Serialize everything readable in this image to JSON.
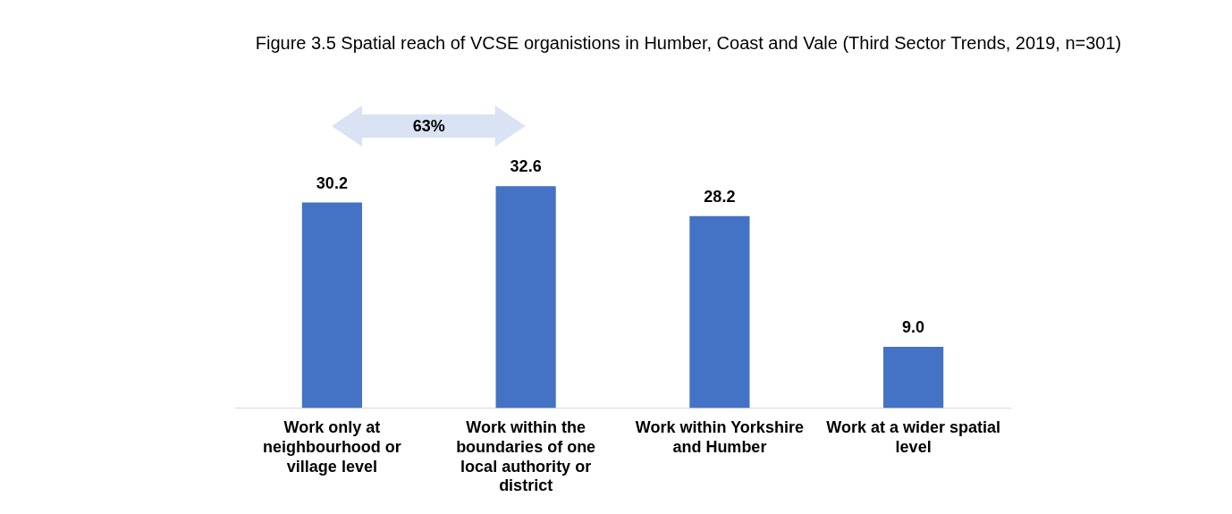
{
  "chart_data": {
    "type": "bar",
    "title": "Figure 3.5   Spatial reach of VCSE organistions in Humber, Coast and Vale (Third Sector Trends, 2019, n=301)",
    "categories": [
      "Work only at neighbourhood or village level",
      "Work within the boundaries of one local authority or district",
      "Work within Yorkshire and Humber",
      "Work at a wider spatial level"
    ],
    "values": [
      30.2,
      32.6,
      28.2,
      9.0
    ],
    "color": "#4472c4",
    "value_labels": [
      "30.2",
      "32.6",
      "28.2",
      "9.0"
    ],
    "annotations": [
      "63%"
    ],
    "grid": false,
    "legend": false
  }
}
